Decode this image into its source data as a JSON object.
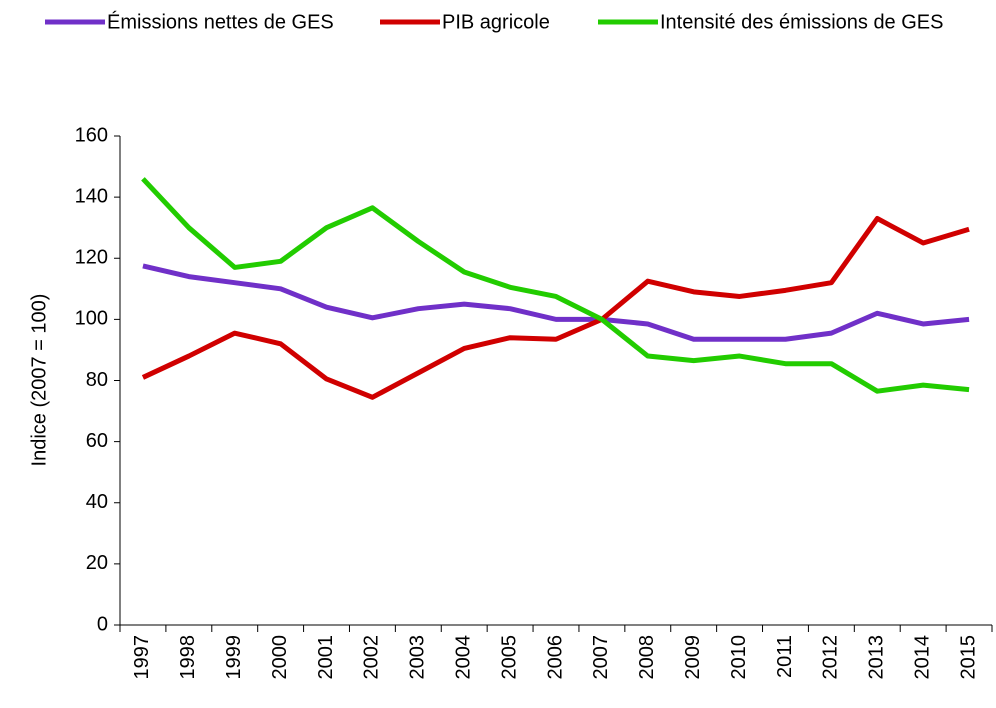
{
  "chart_data": {
    "type": "line",
    "ylabel": "Indice (2007 = 100)",
    "categories": [
      "1997",
      "1998",
      "1999",
      "2000",
      "2001",
      "2002",
      "2003",
      "2004",
      "2005",
      "2006",
      "2007",
      "2008",
      "2009",
      "2010",
      "2011",
      "2012",
      "2013",
      "2014",
      "2015"
    ],
    "series": [
      {
        "name": "Émissions nettes de GES",
        "color": "#7030c8",
        "values": [
          117.5,
          114,
          112,
          110,
          104,
          100.5,
          103.5,
          105,
          103.5,
          100,
          100,
          98.5,
          93.5,
          93.5,
          93.5,
          95.5,
          102,
          98.5,
          100
        ]
      },
      {
        "name": "PIB agricole",
        "color": "#d00000",
        "values": [
          81,
          88,
          95.5,
          92,
          80.5,
          74.5,
          82.5,
          90.5,
          94,
          93.5,
          100,
          112.5,
          109,
          107.5,
          109.5,
          112,
          133,
          125,
          129.5
        ]
      },
      {
        "name": "Intensité des émissions de GES",
        "color": "#22cc00",
        "values": [
          146,
          130,
          117,
          119,
          130,
          136.5,
          125.5,
          115.5,
          110.5,
          107.5,
          100,
          88,
          86.5,
          88,
          85.5,
          85.5,
          76.5,
          78.5,
          77
        ]
      }
    ],
    "ylim": [
      0,
      160
    ],
    "yticks": [
      0,
      20,
      40,
      60,
      80,
      100,
      120,
      140,
      160
    ],
    "grid": false,
    "legend": "top"
  }
}
